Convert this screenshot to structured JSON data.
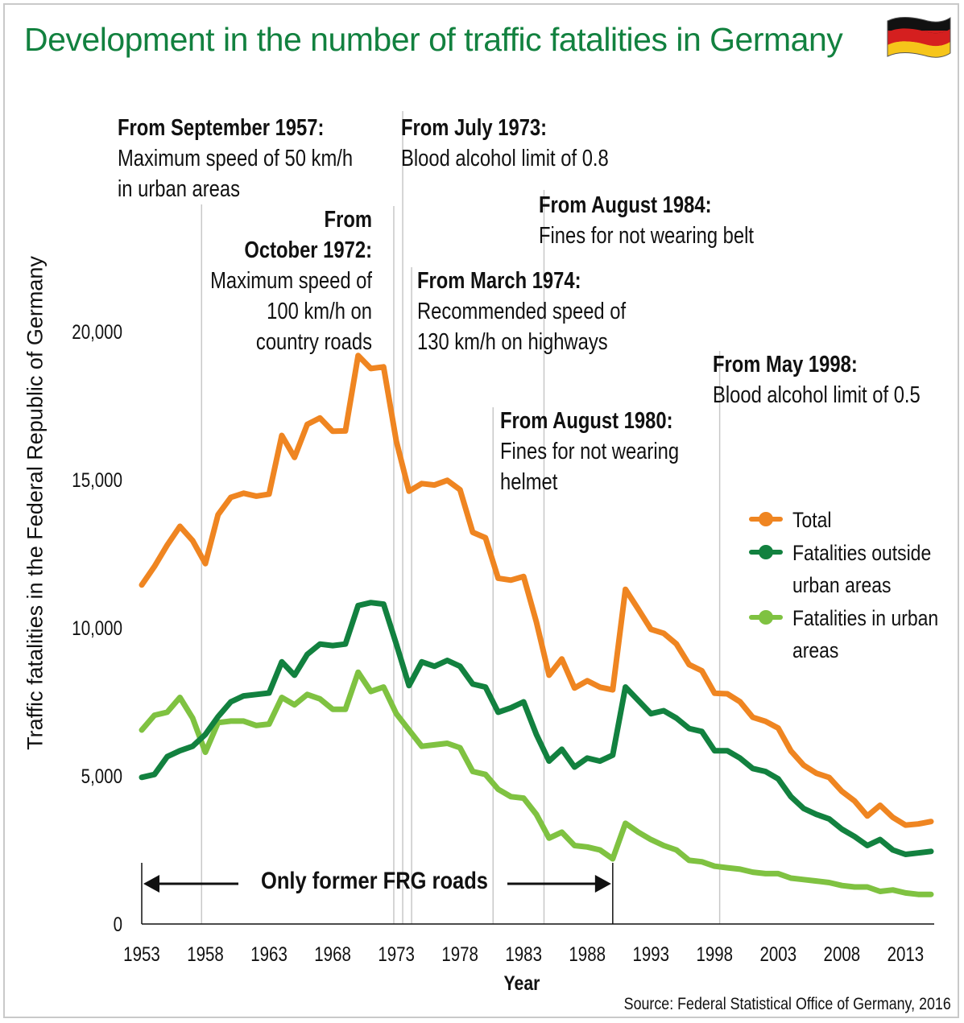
{
  "title": "Development in the number of traffic fatalities in Germany",
  "source": "Source: Federal Statistical Office of Germany, 2016",
  "colors": {
    "total": "#ef8521",
    "outside": "#12813f",
    "urban": "#7fc241",
    "title": "#12813f"
  },
  "flag_icon": "german-flag-icon",
  "frg_label": "Only former FRG roads",
  "annotations": [
    {
      "heading": "From September 1957:",
      "lines": [
        "Maximum speed of 50 km/h",
        "in urban areas"
      ]
    },
    {
      "heading_lines": [
        "From",
        "October 1972:"
      ],
      "lines": [
        "Maximum speed of",
        "100 km/h on",
        "country roads"
      ]
    },
    {
      "heading": "From July 1973:",
      "lines": [
        "Blood alcohol limit of 0.8"
      ]
    },
    {
      "heading": "From March 1974:",
      "lines": [
        "Recommended speed of",
        "130 km/h on highways"
      ]
    },
    {
      "heading": "From August 1980:",
      "lines": [
        "Fines for not wearing",
        "helmet"
      ]
    },
    {
      "heading": "From August 1984:",
      "lines": [
        "Fines for not wearing belt"
      ]
    },
    {
      "heading": "From May 1998:",
      "lines": [
        "Blood alcohol limit of 0.5"
      ]
    }
  ],
  "chart_data": {
    "type": "line",
    "title": "Development in the number of traffic fatalities in Germany",
    "xlabel": "Year",
    "ylabel": "Traffic fatalities in the Federal Republic of Germany",
    "xlim": [
      1953,
      2015
    ],
    "ylim": [
      0,
      20000
    ],
    "x_ticks": [
      "1953",
      "1958",
      "1963",
      "1968",
      "1973",
      "1978",
      "1983",
      "1988",
      "1993",
      "1998",
      "2003",
      "2008",
      "2013"
    ],
    "y_ticks": [
      "0",
      "5,000",
      "10,000",
      "15,000",
      "20,000"
    ],
    "event_years": [
      1957.7,
      1972.8,
      1973.5,
      1974.2,
      1980.6,
      1984.6,
      1998.4
    ],
    "frg_range": [
      1953,
      1990
    ],
    "x": [
      1953,
      1954,
      1955,
      1956,
      1957,
      1958,
      1959,
      1960,
      1961,
      1962,
      1963,
      1964,
      1965,
      1966,
      1967,
      1968,
      1969,
      1970,
      1971,
      1972,
      1973,
      1974,
      1975,
      1976,
      1977,
      1978,
      1979,
      1980,
      1981,
      1982,
      1983,
      1984,
      1985,
      1986,
      1987,
      1988,
      1989,
      1990,
      1991,
      1992,
      1993,
      1994,
      1995,
      1996,
      1997,
      1998,
      1999,
      2000,
      2001,
      2002,
      2003,
      2004,
      2005,
      2006,
      2007,
      2008,
      2009,
      2010,
      2011,
      2012,
      2013,
      2014,
      2015
    ],
    "series": [
      {
        "name": "Total",
        "values": [
          11449,
          12071,
          12791,
          13427,
          12942,
          12169,
          13822,
          14406,
          14543,
          14445,
          14513,
          16494,
          15753,
          16868,
          17084,
          16636,
          16646,
          19193,
          18753,
          18811,
          16302,
          14614,
          14870,
          14820,
          14978,
          14662,
          13222,
          13041,
          11674,
          11608,
          11732,
          10199,
          8400,
          8948,
          7967,
          8213,
          7995,
          7906,
          11300,
          10631,
          9949,
          9814,
          9454,
          8758,
          8549,
          7792,
          7772,
          7503,
          6977,
          6842,
          6613,
          5842,
          5361,
          5091,
          4949,
          4477,
          4152,
          3648,
          4009,
          3600,
          3339,
          3377,
          3459
        ]
      },
      {
        "name": "Fatalities outside urban areas",
        "values": [
          4950,
          5050,
          5650,
          5850,
          6000,
          6400,
          7000,
          7500,
          7700,
          7750,
          7800,
          8850,
          8400,
          9100,
          9450,
          9400,
          9450,
          10750,
          10850,
          10800,
          9450,
          8050,
          8850,
          8700,
          8900,
          8700,
          8100,
          8000,
          7150,
          7300,
          7500,
          6400,
          5500,
          5900,
          5300,
          5600,
          5500,
          5700,
          8000,
          7550,
          7100,
          7200,
          6950,
          6600,
          6500,
          5850,
          5850,
          5600,
          5250,
          5150,
          4900,
          4300,
          3900,
          3700,
          3550,
          3200,
          2950,
          2650,
          2850,
          2500,
          2350,
          2400,
          2450
        ]
      },
      {
        "name": "Fatalities in urban areas",
        "values": [
          6550,
          7050,
          7150,
          7650,
          6950,
          5800,
          6800,
          6850,
          6850,
          6700,
          6750,
          7650,
          7400,
          7750,
          7600,
          7250,
          7250,
          8500,
          7850,
          8000,
          7100,
          6550,
          6000,
          6050,
          6100,
          5950,
          5150,
          5050,
          4550,
          4300,
          4250,
          3700,
          2900,
          3100,
          2650,
          2600,
          2500,
          2200,
          3400,
          3100,
          2850,
          2650,
          2500,
          2150,
          2100,
          1950,
          1900,
          1850,
          1750,
          1700,
          1700,
          1550,
          1500,
          1450,
          1400,
          1300,
          1250,
          1250,
          1100,
          1150,
          1050,
          1000,
          1000
        ]
      }
    ]
  }
}
